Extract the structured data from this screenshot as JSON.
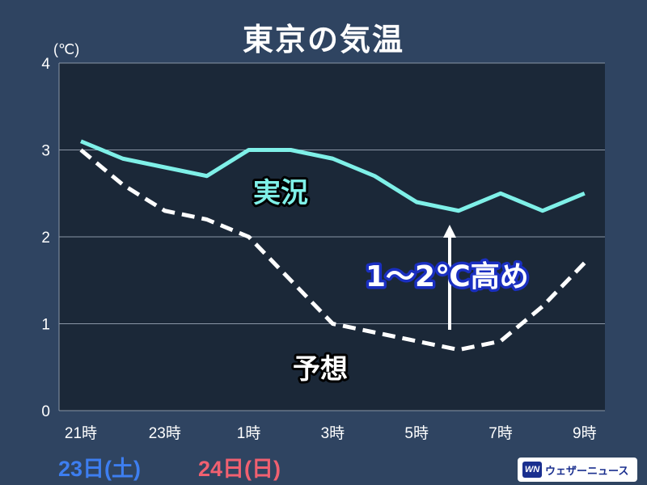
{
  "title": "東京の気温",
  "unit_label": "(℃)",
  "dates": [
    {
      "label": "23日(土)",
      "color": "#3d7ef0"
    },
    {
      "label": "24日(日)",
      "color": "#f06070"
    }
  ],
  "annotation_rise": "1～2℃高め",
  "logo": {
    "mark": "WN",
    "text": "ウェザーニュース",
    "icon": "weathernews-logo"
  },
  "colors": {
    "background": "#2f4461",
    "plot_background": "#1b2838",
    "actual": "#7ff0e8",
    "forecast": "#ffffff",
    "annotation_rise_fill": "#ffffff",
    "annotation_rise_stroke": "#1a2fc0"
  },
  "chart_data": {
    "type": "line",
    "x": [
      "21時",
      "22時",
      "23時",
      "0時",
      "1時",
      "2時",
      "3時",
      "4時",
      "5時",
      "6時",
      "7時",
      "8時",
      "9時"
    ],
    "x_tick_labels": [
      "21時",
      "23時",
      "1時",
      "3時",
      "5時",
      "7時",
      "9時"
    ],
    "ylim": [
      0,
      4
    ],
    "yticks": [
      0,
      1,
      2,
      3,
      4
    ],
    "ylabel": "(℃)",
    "grid": true,
    "series": [
      {
        "name": "実況",
        "style": "solid",
        "color": "#7ff0e8",
        "values": [
          3.1,
          2.9,
          2.8,
          2.7,
          3.0,
          3.0,
          2.9,
          2.7,
          2.4,
          2.3,
          2.5,
          2.3,
          2.5
        ]
      },
      {
        "name": "予想",
        "style": "dashed",
        "color": "#ffffff",
        "values": [
          3.0,
          2.6,
          2.3,
          2.2,
          2.0,
          1.5,
          1.0,
          0.9,
          0.8,
          0.7,
          0.8,
          1.2,
          1.7
        ]
      }
    ]
  }
}
